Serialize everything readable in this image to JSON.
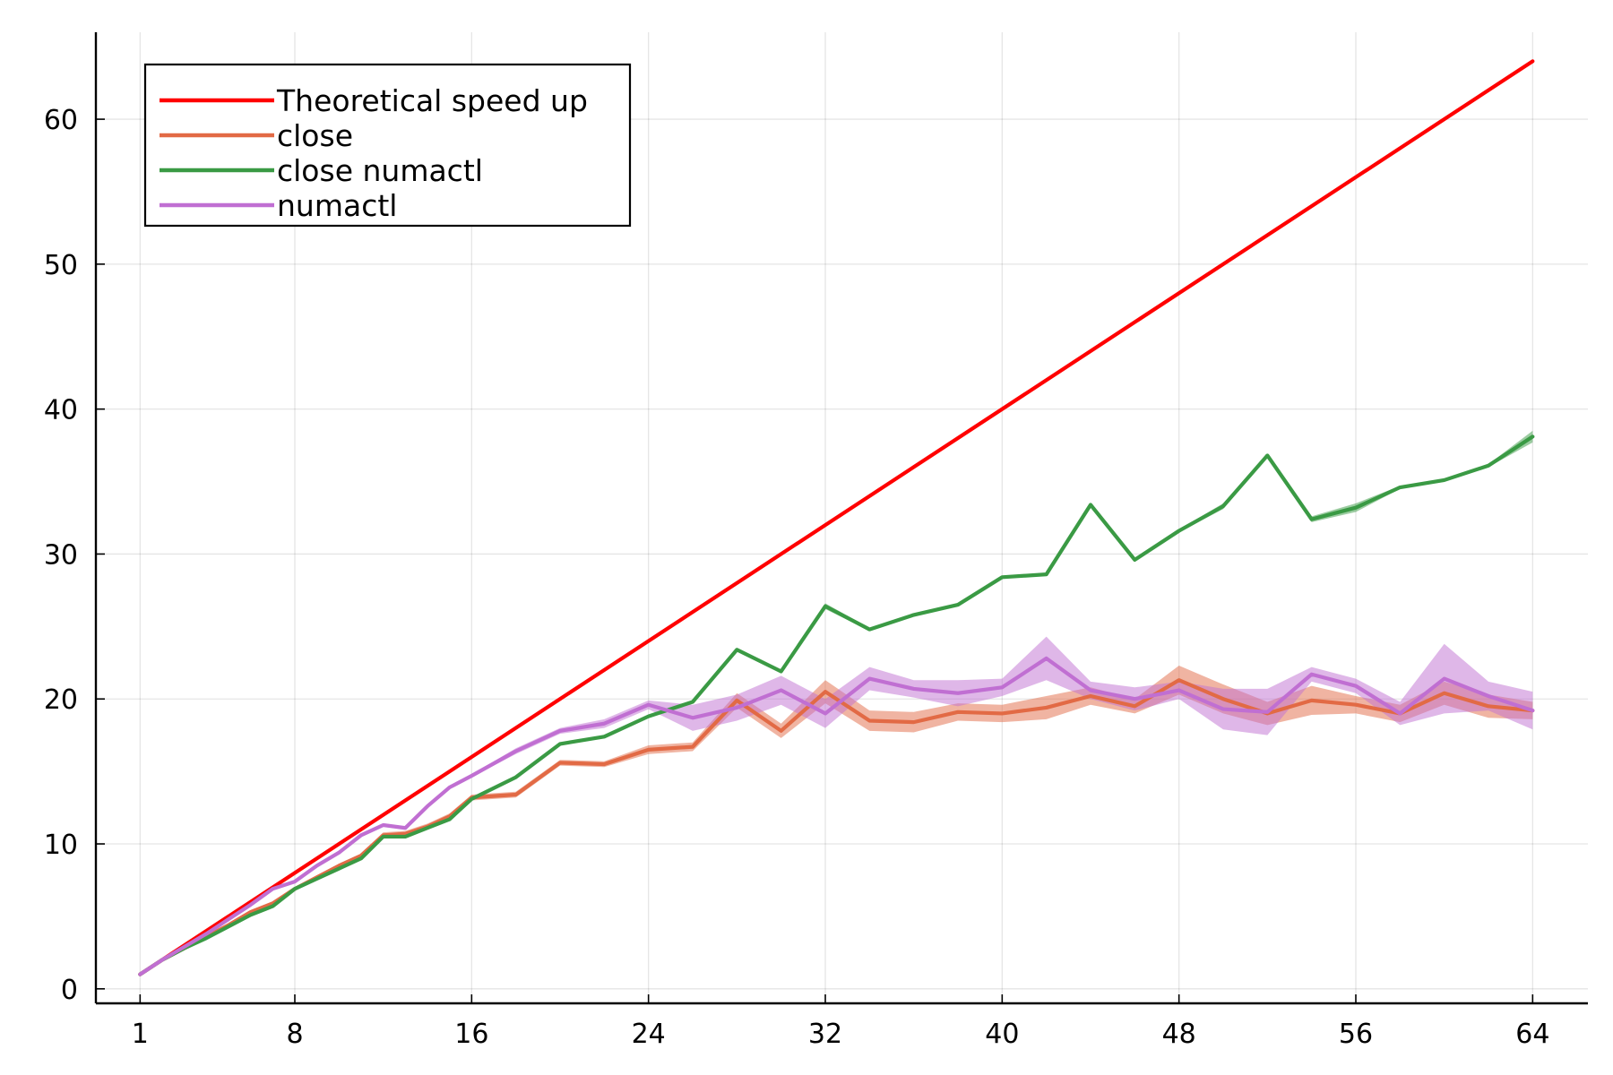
{
  "chart_data": {
    "type": "line",
    "title": "",
    "xlabel": "",
    "ylabel": "",
    "xlim": [
      -1,
      66.5
    ],
    "ylim": [
      -1,
      66
    ],
    "xticks": [
      1,
      8,
      16,
      24,
      32,
      40,
      48,
      56,
      64
    ],
    "yticks": [
      0,
      10,
      20,
      30,
      40,
      50,
      60
    ],
    "grid": true,
    "legend_position": "top-left",
    "series": [
      {
        "name": "Theoretical speed up",
        "color": "#ff0000",
        "x": [
          1,
          64
        ],
        "y": [
          1,
          64
        ]
      },
      {
        "name": "close",
        "color": "#e26a45",
        "x": [
          1,
          2,
          3,
          4,
          5,
          6,
          7,
          8,
          9,
          10,
          11,
          12,
          13,
          14,
          15,
          16,
          18,
          20,
          22,
          24,
          26,
          28,
          30,
          32,
          34,
          36,
          38,
          40,
          42,
          44,
          46,
          48,
          50,
          52,
          54,
          56,
          58,
          60,
          62,
          64
        ],
        "y": [
          1,
          2,
          2.8,
          3.6,
          4.4,
          5.3,
          5.9,
          6.9,
          7.7,
          8.5,
          9.2,
          10.6,
          10.7,
          11.2,
          11.9,
          13.2,
          13.4,
          15.6,
          15.5,
          16.5,
          16.7,
          19.9,
          17.8,
          20.5,
          18.5,
          18.4,
          19.1,
          19,
          19.4,
          20.2,
          19.5,
          21.3,
          20,
          19,
          19.9,
          19.6,
          19,
          20.4,
          19.5,
          19.2
        ],
        "band": [
          0.1,
          0.1,
          0.1,
          0.1,
          0.1,
          0.1,
          0.1,
          0.1,
          0.1,
          0.1,
          0.1,
          0.2,
          0.2,
          0.2,
          0.2,
          0.2,
          0.2,
          0.2,
          0.2,
          0.3,
          0.3,
          0.5,
          0.5,
          0.8,
          0.7,
          0.7,
          0.6,
          0.6,
          0.8,
          0.6,
          0.5,
          1,
          1,
          0.8,
          1,
          0.6,
          0.6,
          0.8,
          0.8,
          0.6
        ]
      },
      {
        "name": "close numactl",
        "color": "#3a9a44",
        "x": [
          1,
          2,
          3,
          4,
          5,
          6,
          7,
          8,
          9,
          10,
          11,
          12,
          13,
          14,
          15,
          16,
          18,
          20,
          22,
          24,
          26,
          28,
          30,
          32,
          34,
          36,
          38,
          40,
          42,
          44,
          46,
          48,
          50,
          52,
          54,
          56,
          58,
          60,
          62,
          64
        ],
        "y": [
          1,
          2,
          2.8,
          3.5,
          4.3,
          5.1,
          5.7,
          6.9,
          7.6,
          8.3,
          9,
          10.5,
          10.5,
          11.1,
          11.7,
          13.1,
          14.6,
          16.9,
          17.4,
          18.8,
          19.8,
          23.4,
          21.9,
          26.4,
          24.8,
          25.8,
          26.5,
          28.4,
          28.6,
          33.4,
          29.6,
          31.6,
          33.3,
          36.8,
          32.4,
          33.2,
          34.6,
          35.1,
          36.1,
          38.1
        ],
        "band": [
          0.05,
          0.05,
          0.05,
          0.05,
          0.05,
          0.05,
          0.05,
          0.05,
          0.05,
          0.05,
          0.05,
          0.1,
          0.1,
          0.1,
          0.1,
          0.1,
          0.1,
          0.1,
          0.1,
          0.1,
          0.1,
          0.1,
          0.1,
          0.2,
          0.1,
          0.1,
          0.1,
          0.1,
          0.1,
          0.1,
          0.1,
          0.1,
          0.2,
          0.1,
          0.2,
          0.3,
          0.1,
          0.1,
          0.1,
          0.4
        ]
      },
      {
        "name": "numactl",
        "color": "#c06fd2",
        "x": [
          1,
          2,
          3,
          4,
          5,
          6,
          7,
          8,
          9,
          10,
          11,
          12,
          13,
          14,
          15,
          16,
          18,
          20,
          22,
          24,
          26,
          28,
          30,
          32,
          34,
          36,
          38,
          40,
          42,
          44,
          46,
          48,
          50,
          52,
          54,
          56,
          58,
          60,
          62,
          64
        ],
        "y": [
          1,
          2,
          2.9,
          3.8,
          4.8,
          5.8,
          6.9,
          7.4,
          8.5,
          9.4,
          10.6,
          11.3,
          11.1,
          12.6,
          13.9,
          14.7,
          16.4,
          17.8,
          18.3,
          19.6,
          18.7,
          19.4,
          20.6,
          19,
          21.4,
          20.7,
          20.4,
          20.8,
          22.8,
          20.6,
          20,
          20.6,
          19.3,
          19.1,
          21.7,
          20.9,
          19,
          21.4,
          20.2,
          19.2
        ],
        "band": [
          0.05,
          0.05,
          0.05,
          0.05,
          0.05,
          0.05,
          0.05,
          0.1,
          0.1,
          0.1,
          0.1,
          0.1,
          0.1,
          0.1,
          0.1,
          0.1,
          0.2,
          0.2,
          0.3,
          0.3,
          0.9,
          0.9,
          1,
          1,
          0.8,
          0.6,
          0.9,
          0.6,
          1.5,
          0.6,
          0.8,
          0.6,
          1.4,
          1.6,
          0.5,
          0.5,
          0.8,
          2.4,
          1,
          1.3
        ]
      }
    ]
  }
}
